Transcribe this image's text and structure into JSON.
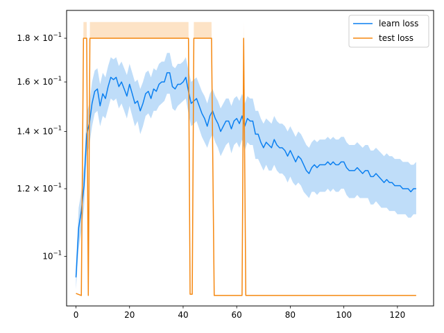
{
  "chart_data": {
    "type": "line",
    "title": "",
    "xlabel": "",
    "ylabel": "",
    "xlim": [
      -3.5,
      133.5
    ],
    "ylim": [
      0.0875,
      0.194
    ],
    "yscale": "log",
    "grid": false,
    "legend_position": "top-right",
    "x_ticks": [
      0,
      20,
      40,
      60,
      80,
      100,
      120
    ],
    "x_tick_labels": [
      "0",
      "20",
      "40",
      "60",
      "80",
      "100",
      "120"
    ],
    "y_ticks": [
      0.1,
      0.12,
      0.14,
      0.16,
      0.18
    ],
    "y_tick_labels": [
      {
        "mant": "",
        "base": "10",
        "exp": "−1"
      },
      {
        "mant": "1.2 × ",
        "base": "10",
        "exp": "−1"
      },
      {
        "mant": "1.4 × ",
        "base": "10",
        "exp": "−1"
      },
      {
        "mant": "1.6 × ",
        "base": "10",
        "exp": "−1"
      },
      {
        "mant": "1.8 × ",
        "base": "10",
        "exp": "−1"
      }
    ],
    "series": [
      {
        "name": "learn loss",
        "color": "#0a7ff0",
        "band_color": "#a9d1f7",
        "x": [
          0,
          1,
          2,
          3,
          4,
          5,
          6,
          7,
          8,
          9,
          10,
          11,
          12,
          13,
          14,
          15,
          16,
          17,
          18,
          19,
          20,
          21,
          22,
          23,
          24,
          25,
          26,
          27,
          28,
          29,
          30,
          31,
          32,
          33,
          34,
          35,
          36,
          37,
          38,
          39,
          40,
          41,
          42,
          43,
          44,
          45,
          46,
          47,
          48,
          49,
          50,
          51,
          52,
          53,
          54,
          55,
          56,
          57,
          58,
          59,
          60,
          61,
          62,
          63,
          64,
          65,
          66,
          67,
          68,
          69,
          70,
          71,
          72,
          73,
          74,
          75,
          76,
          77,
          78,
          79,
          80,
          81,
          82,
          83,
          84,
          85,
          86,
          87,
          88,
          89,
          90,
          91,
          92,
          93,
          94,
          95,
          96,
          97,
          98,
          99,
          100,
          101,
          102,
          103,
          104,
          105,
          106,
          107,
          108,
          109,
          110,
          111,
          112,
          113,
          114,
          115,
          116,
          117,
          118,
          119,
          120,
          121,
          122,
          123,
          124,
          125,
          126,
          127
        ],
        "values": [
          0.0945,
          0.108,
          0.113,
          0.121,
          0.139,
          0.143,
          0.151,
          0.156,
          0.157,
          0.15,
          0.155,
          0.153,
          0.158,
          0.162,
          0.161,
          0.162,
          0.158,
          0.16,
          0.157,
          0.154,
          0.159,
          0.155,
          0.151,
          0.152,
          0.148,
          0.151,
          0.155,
          0.156,
          0.153,
          0.157,
          0.156,
          0.159,
          0.16,
          0.16,
          0.164,
          0.164,
          0.158,
          0.157,
          0.159,
          0.159,
          0.16,
          0.162,
          0.156,
          0.151,
          0.152,
          0.153,
          0.15,
          0.147,
          0.145,
          0.142,
          0.146,
          0.148,
          0.145,
          0.143,
          0.14,
          0.142,
          0.144,
          0.144,
          0.141,
          0.144,
          0.145,
          0.143,
          0.146,
          0.142,
          0.145,
          0.144,
          0.144,
          0.139,
          0.139,
          0.136,
          0.134,
          0.136,
          0.135,
          0.134,
          0.137,
          0.135,
          0.134,
          0.134,
          0.133,
          0.131,
          0.133,
          0.131,
          0.129,
          0.131,
          0.13,
          0.128,
          0.126,
          0.125,
          0.127,
          0.128,
          0.127,
          0.128,
          0.128,
          0.128,
          0.129,
          0.128,
          0.129,
          0.128,
          0.128,
          0.129,
          0.129,
          0.127,
          0.126,
          0.126,
          0.126,
          0.127,
          0.126,
          0.125,
          0.126,
          0.126,
          0.124,
          0.124,
          0.125,
          0.124,
          0.123,
          0.122,
          0.123,
          0.122,
          0.122,
          0.121,
          0.121,
          0.121,
          0.12,
          0.12,
          0.12,
          0.119,
          0.12,
          0.12
        ],
        "lower": [
          0.0915,
          0.102,
          0.107,
          0.114,
          0.131,
          0.135,
          0.142,
          0.147,
          0.148,
          0.142,
          0.146,
          0.145,
          0.149,
          0.153,
          0.152,
          0.153,
          0.149,
          0.151,
          0.148,
          0.145,
          0.15,
          0.146,
          0.142,
          0.144,
          0.139,
          0.142,
          0.146,
          0.147,
          0.145,
          0.148,
          0.148,
          0.15,
          0.151,
          0.152,
          0.155,
          0.155,
          0.149,
          0.148,
          0.15,
          0.151,
          0.152,
          0.153,
          0.147,
          0.142,
          0.143,
          0.144,
          0.141,
          0.138,
          0.136,
          0.134,
          0.137,
          0.139,
          0.136,
          0.134,
          0.131,
          0.133,
          0.135,
          0.136,
          0.132,
          0.135,
          0.136,
          0.134,
          0.137,
          0.133,
          0.136,
          0.135,
          0.135,
          0.13,
          0.13,
          0.128,
          0.126,
          0.128,
          0.126,
          0.126,
          0.128,
          0.126,
          0.125,
          0.125,
          0.124,
          0.122,
          0.124,
          0.122,
          0.121,
          0.122,
          0.121,
          0.119,
          0.118,
          0.117,
          0.119,
          0.119,
          0.118,
          0.119,
          0.119,
          0.119,
          0.12,
          0.119,
          0.12,
          0.119,
          0.119,
          0.12,
          0.12,
          0.118,
          0.117,
          0.117,
          0.117,
          0.118,
          0.117,
          0.117,
          0.117,
          0.117,
          0.115,
          0.115,
          0.116,
          0.115,
          0.114,
          0.114,
          0.114,
          0.113,
          0.113,
          0.113,
          0.112,
          0.112,
          0.112,
          0.112,
          0.111,
          0.111,
          0.112,
          0.112
        ],
        "upper": [
          0.0975,
          0.114,
          0.119,
          0.128,
          0.147,
          0.151,
          0.16,
          0.165,
          0.166,
          0.159,
          0.164,
          0.162,
          0.167,
          0.171,
          0.17,
          0.171,
          0.167,
          0.169,
          0.166,
          0.163,
          0.168,
          0.164,
          0.16,
          0.161,
          0.157,
          0.16,
          0.164,
          0.165,
          0.162,
          0.166,
          0.165,
          0.168,
          0.169,
          0.169,
          0.173,
          0.173,
          0.167,
          0.166,
          0.168,
          0.168,
          0.169,
          0.171,
          0.165,
          0.16,
          0.161,
          0.162,
          0.159,
          0.156,
          0.154,
          0.151,
          0.155,
          0.157,
          0.154,
          0.152,
          0.149,
          0.151,
          0.153,
          0.153,
          0.15,
          0.153,
          0.154,
          0.152,
          0.155,
          0.151,
          0.154,
          0.153,
          0.153,
          0.148,
          0.148,
          0.145,
          0.143,
          0.145,
          0.144,
          0.143,
          0.146,
          0.144,
          0.143,
          0.143,
          0.142,
          0.14,
          0.142,
          0.14,
          0.138,
          0.14,
          0.139,
          0.137,
          0.135,
          0.134,
          0.136,
          0.137,
          0.136,
          0.137,
          0.137,
          0.137,
          0.138,
          0.137,
          0.138,
          0.137,
          0.137,
          0.138,
          0.138,
          0.136,
          0.135,
          0.135,
          0.135,
          0.136,
          0.135,
          0.134,
          0.135,
          0.135,
          0.133,
          0.133,
          0.134,
          0.133,
          0.132,
          0.131,
          0.132,
          0.131,
          0.131,
          0.13,
          0.13,
          0.13,
          0.129,
          0.129,
          0.129,
          0.128,
          0.128,
          0.129
        ]
      },
      {
        "name": "test loss",
        "color": "#f5870f",
        "band_color": "#fcd9b3",
        "x": [
          0,
          2,
          2.8,
          3,
          4,
          4.6,
          5.2,
          6,
          7,
          41,
          42,
          42.6,
          43.4,
          44,
          45,
          46,
          47,
          48,
          49,
          50,
          50.6,
          51.6,
          52,
          61,
          62,
          62.6,
          63.4,
          64,
          65,
          127
        ],
        "values": [
          0.0905,
          0.09,
          0.18,
          0.18,
          0.18,
          0.09,
          0.18,
          0.18,
          0.18,
          0.18,
          0.18,
          0.0903,
          0.0903,
          0.18,
          0.18,
          0.18,
          0.18,
          0.18,
          0.18,
          0.18,
          0.18,
          0.09,
          0.09,
          0.09,
          0.09,
          0.18,
          0.09,
          0.09,
          0.09,
          0.09
        ],
        "lower": [
          0.0905,
          0.09,
          0.18,
          0.18,
          0.18,
          0.09,
          0.18,
          0.18,
          0.18,
          0.18,
          0.18,
          0.0903,
          0.0903,
          0.18,
          0.18,
          0.18,
          0.18,
          0.18,
          0.18,
          0.18,
          0.18,
          0.09,
          0.09,
          0.09,
          0.09,
          0.18,
          0.09,
          0.09,
          0.09,
          0.09
        ],
        "upper": [
          0.0905,
          0.09,
          0.188,
          0.188,
          0.188,
          0.09,
          0.188,
          0.188,
          0.188,
          0.188,
          0.188,
          0.0903,
          0.0903,
          0.188,
          0.188,
          0.188,
          0.188,
          0.188,
          0.188,
          0.188,
          0.188,
          0.09,
          0.09,
          0.09,
          0.09,
          0.188,
          0.09,
          0.09,
          0.09,
          0.09
        ]
      }
    ]
  }
}
